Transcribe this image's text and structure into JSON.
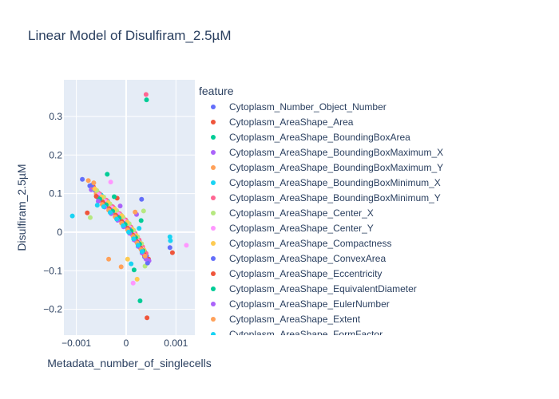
{
  "chart_data": {
    "type": "scatter",
    "title": "Linear Model of Disulfiram_2.5µM",
    "xlabel": "Metadata_number_of_singlecells",
    "ylabel": "Disulfiram_2.5µM",
    "xlim": [
      -0.00125,
      0.00138
    ],
    "ylim": [
      -0.267,
      0.395
    ],
    "x_ticks": [
      -0.001,
      0,
      0.001
    ],
    "x_tick_labels": [
      "−0.001",
      "0",
      "0.001"
    ],
    "y_ticks": [
      -0.2,
      -0.1,
      0,
      0.1,
      0.2,
      0.3
    ],
    "y_tick_labels": [
      "−0.2",
      "−0.1",
      "0",
      "0.1",
      "0.2",
      "0.3"
    ],
    "grid": true,
    "legend_title": "feature",
    "legend_placement": "right",
    "series": [
      {
        "name": "Cytoplasm_Number_Object_Number",
        "color": "#636efa",
        "points": [
          [
            -0.00088,
            0.137
          ],
          [
            -0.00073,
            0.12
          ],
          [
            -0.00062,
            0.108
          ],
          [
            -0.0005,
            0.09
          ],
          [
            -0.00036,
            0.075
          ],
          [
            -0.00022,
            0.058
          ],
          [
            -0.0001,
            0.04
          ],
          [
            2e-05,
            0.02
          ],
          [
            0.00012,
            0.005
          ],
          [
            0.0002,
            -0.012
          ],
          [
            0.00028,
            -0.03
          ],
          [
            0.00035,
            -0.048
          ],
          [
            0.00041,
            -0.062
          ],
          [
            0.00088,
            -0.04
          ]
        ]
      },
      {
        "name": "Cytoplasm_AreaShape_Area",
        "color": "#ef553b",
        "points": [
          [
            -0.00078,
            0.05
          ],
          [
            -0.00066,
            0.118
          ],
          [
            -0.00052,
            0.098
          ],
          [
            -0.0004,
            0.082
          ],
          [
            -0.00028,
            0.064
          ],
          [
            -0.00014,
            0.046
          ],
          [
            -2e-05,
            0.03
          ],
          [
            0.0001,
            0.012
          ],
          [
            0.00018,
            -0.004
          ],
          [
            0.00026,
            -0.022
          ],
          [
            0.00033,
            -0.04
          ],
          [
            0.00039,
            -0.056
          ],
          [
            0.00045,
            -0.07
          ],
          [
            0.00093,
            -0.053
          ]
        ]
      },
      {
        "name": "Cytoplasm_AreaShape_BoundingBoxArea",
        "color": "#00cc96",
        "points": [
          [
            -0.00038,
            0.15
          ],
          [
            -0.00058,
            0.104
          ],
          [
            -0.00046,
            0.088
          ],
          [
            -0.00032,
            0.07
          ],
          [
            -0.0002,
            0.052
          ],
          [
            -7e-05,
            0.036
          ],
          [
            5e-05,
            0.018
          ],
          [
            0.00014,
            0.001
          ],
          [
            0.00022,
            -0.016
          ],
          [
            0.0003,
            -0.034
          ],
          [
            0.00037,
            -0.05
          ],
          [
            0.00028,
            -0.178
          ],
          [
            0.00041,
            0.343
          ]
        ]
      },
      {
        "name": "Cytoplasm_AreaShape_BoundingBoxMaximum_X",
        "color": "#ab63fa",
        "points": [
          [
            -0.0007,
            0.11
          ],
          [
            -0.00056,
            0.094
          ],
          [
            -0.00043,
            0.078
          ],
          [
            -0.0003,
            0.06
          ],
          [
            -0.00016,
            0.044
          ],
          [
            -4e-05,
            0.026
          ],
          [
            8e-05,
            0.009
          ],
          [
            0.00017,
            -0.007
          ],
          [
            0.00025,
            -0.026
          ],
          [
            0.00032,
            -0.042
          ],
          [
            0.00039,
            -0.058
          ],
          [
            0.00046,
            -0.074
          ]
        ]
      },
      {
        "name": "Cytoplasm_AreaShape_BoundingBoxMaximum_Y",
        "color": "#ffa15a",
        "points": [
          [
            -0.00076,
            0.134
          ],
          [
            -0.0006,
            0.1
          ],
          [
            -0.00047,
            0.085
          ],
          [
            -0.00034,
            0.068
          ],
          [
            -0.00021,
            0.05
          ],
          [
            -8e-05,
            0.033
          ],
          [
            3e-05,
            0.016
          ],
          [
            0.00013,
            -0.002
          ],
          [
            0.00021,
            -0.019
          ],
          [
            0.00029,
            -0.036
          ],
          [
            0.00036,
            -0.052
          ],
          [
            -0.0001,
            -0.09
          ]
        ]
      },
      {
        "name": "Cytoplasm_AreaShape_BoundingBoxMinimum_X",
        "color": "#19d3f3",
        "points": [
          [
            -0.00108,
            0.042
          ],
          [
            -0.00064,
            0.112
          ],
          [
            -0.0005,
            0.096
          ],
          [
            -0.00037,
            0.08
          ],
          [
            -0.00024,
            0.062
          ],
          [
            -0.00011,
            0.045
          ],
          [
            1e-05,
            0.028
          ],
          [
            0.00011,
            0.01
          ],
          [
            0.00019,
            -0.008
          ],
          [
            0.00027,
            -0.025
          ],
          [
            0.00034,
            -0.044
          ],
          [
            0.00088,
            -0.012
          ]
        ]
      },
      {
        "name": "Cytoplasm_AreaShape_BoundingBoxMinimum_Y",
        "color": "#ff6692",
        "points": [
          [
            -0.00067,
            0.116
          ],
          [
            -0.00054,
            0.1
          ],
          [
            -0.0004,
            0.083
          ],
          [
            -0.00027,
            0.066
          ],
          [
            -0.00013,
            0.048
          ],
          [
            -1e-05,
            0.032
          ],
          [
            9e-05,
            0.014
          ],
          [
            0.00018,
            -0.003
          ],
          [
            0.00026,
            -0.02
          ],
          [
            0.00033,
            -0.038
          ],
          [
            0.0004,
            -0.055
          ],
          [
            0.0004,
            0.357
          ]
        ]
      },
      {
        "name": "Cytoplasm_AreaShape_Center_X",
        "color": "#b6e880",
        "points": [
          [
            -0.00072,
            0.038
          ],
          [
            -0.00059,
            0.108
          ],
          [
            -0.00045,
            0.091
          ],
          [
            -0.00033,
            0.074
          ],
          [
            -0.00019,
            0.056
          ],
          [
            -6e-05,
            0.039
          ],
          [
            6e-05,
            0.022
          ],
          [
            0.00015,
            0.005
          ],
          [
            0.00023,
            -0.012
          ],
          [
            0.00031,
            -0.03
          ],
          [
            0.00035,
            0.055
          ],
          [
            0.00038,
            -0.088
          ]
        ]
      },
      {
        "name": "Cytoplasm_AreaShape_Center_Y",
        "color": "#ff97ff",
        "points": [
          [
            -0.00031,
            0.13
          ],
          [
            -0.00055,
            0.097
          ],
          [
            -0.00042,
            0.08
          ],
          [
            -0.00029,
            0.063
          ],
          [
            -0.00015,
            0.046
          ],
          [
            -3e-05,
            0.029
          ],
          [
            8e-05,
            0.011
          ],
          [
            0.00016,
            -0.006
          ],
          [
            0.00024,
            -0.024
          ],
          [
            0.00031,
            -0.042
          ],
          [
            0.00014,
            -0.132
          ],
          [
            0.00121,
            -0.034
          ]
        ]
      },
      {
        "name": "Cytoplasm_AreaShape_Compactness",
        "color": "#fecb52",
        "points": [
          [
            -0.00063,
            0.112
          ],
          [
            -0.00049,
            0.092
          ],
          [
            -0.00036,
            0.077
          ],
          [
            -0.00023,
            0.06
          ],
          [
            -9e-05,
            0.043
          ],
          [
            2e-05,
            0.026
          ],
          [
            0.00012,
            0.008
          ],
          [
            0.0002,
            -0.009
          ],
          [
            0.00028,
            -0.028
          ],
          [
            0.00036,
            -0.046
          ],
          [
            0.00022,
            -0.122
          ],
          [
            3e-05,
            -0.07
          ]
        ]
      },
      {
        "name": "Cytoplasm_AreaShape_ConvexArea",
        "color": "#636efa",
        "points": [
          [
            -0.00069,
            0.122
          ],
          [
            -0.00057,
            0.09
          ],
          [
            -0.00044,
            0.073
          ],
          [
            -0.00031,
            0.057
          ],
          [
            -0.00017,
            0.04
          ],
          [
            -5e-05,
            0.023
          ],
          [
            7e-05,
            0.007
          ],
          [
            0.00015,
            -0.01
          ],
          [
            0.00024,
            -0.027
          ],
          [
            0.00031,
            0.085
          ],
          [
            0.00037,
            -0.064
          ],
          [
            0.00043,
            -0.08
          ]
        ]
      },
      {
        "name": "Cytoplasm_AreaShape_Eccentricity",
        "color": "#ef553b",
        "points": [
          [
            -0.0006,
            0.093
          ],
          [
            -0.00047,
            0.078
          ],
          [
            -0.00034,
            0.061
          ],
          [
            -0.00021,
            0.044
          ],
          [
            -9e-05,
            0.028
          ],
          [
            3e-05,
            0.01
          ],
          [
            0.00013,
            -0.007
          ],
          [
            0.00021,
            -0.024
          ],
          [
            0.00029,
            -0.041
          ],
          [
            0.00036,
            -0.058
          ],
          [
            -0.00018,
            0.088
          ],
          [
            0.00042,
            -0.222
          ]
        ]
      },
      {
        "name": "Cytoplasm_AreaShape_EquivalentDiameter",
        "color": "#00cc96",
        "points": [
          [
            -0.00053,
            0.086
          ],
          [
            -0.0004,
            0.071
          ],
          [
            -0.00027,
            0.054
          ],
          [
            -0.00014,
            0.037
          ],
          [
            -2e-05,
            0.02
          ],
          [
            0.0001,
            0.003
          ],
          [
            0.00019,
            -0.014
          ],
          [
            0.00027,
            -0.031
          ],
          [
            0.00034,
            -0.048
          ],
          [
            -0.00024,
            0.092
          ],
          [
            0.0003,
            0.03
          ],
          [
            0.00016,
            -0.098
          ]
        ]
      },
      {
        "name": "Cytoplasm_AreaShape_EulerNumber",
        "color": "#ab63fa",
        "points": [
          [
            -0.00056,
            0.08
          ],
          [
            -0.00043,
            0.065
          ],
          [
            -0.0003,
            0.048
          ],
          [
            -0.00017,
            0.031
          ],
          [
            -5e-05,
            0.014
          ],
          [
            7e-05,
            -0.003
          ],
          [
            0.00016,
            -0.02
          ],
          [
            0.00024,
            -0.037
          ],
          [
            0.00032,
            -0.054
          ],
          [
            0.0004,
            -0.07
          ],
          [
            -0.00012,
            0.068
          ],
          [
            0.00021,
            0.046
          ]
        ]
      },
      {
        "name": "Cytoplasm_AreaShape_Extent",
        "color": "#ffa15a",
        "points": [
          [
            -0.00048,
            0.072
          ],
          [
            -0.00035,
            0.057
          ],
          [
            -0.00022,
            0.04
          ],
          [
            -9e-05,
            0.023
          ],
          [
            3e-05,
            0.006
          ],
          [
            0.00014,
            -0.011
          ],
          [
            0.00022,
            -0.028
          ],
          [
            0.0003,
            -0.045
          ],
          [
            0.00038,
            -0.062
          ],
          [
            -0.00065,
            0.128
          ],
          [
            0.00018,
            0.052
          ],
          [
            -0.00035,
            -0.07
          ]
        ]
      },
      {
        "name": "Cytoplasm_AreaShape_FormFactor",
        "color": "#19d3f3",
        "points": [
          [
            -0.00045,
            0.066
          ],
          [
            -0.00032,
            0.051
          ],
          [
            -0.00019,
            0.034
          ],
          [
            -6e-05,
            0.017
          ],
          [
            5e-05,
            0.0
          ],
          [
            0.00015,
            -0.017
          ],
          [
            0.00024,
            -0.034
          ],
          [
            0.00032,
            -0.05
          ],
          [
            -0.00058,
            0.07
          ],
          [
            0.0001,
            -0.082
          ],
          [
            0.00026,
            0.01
          ],
          [
            0.00089,
            -0.022
          ]
        ]
      }
    ]
  }
}
